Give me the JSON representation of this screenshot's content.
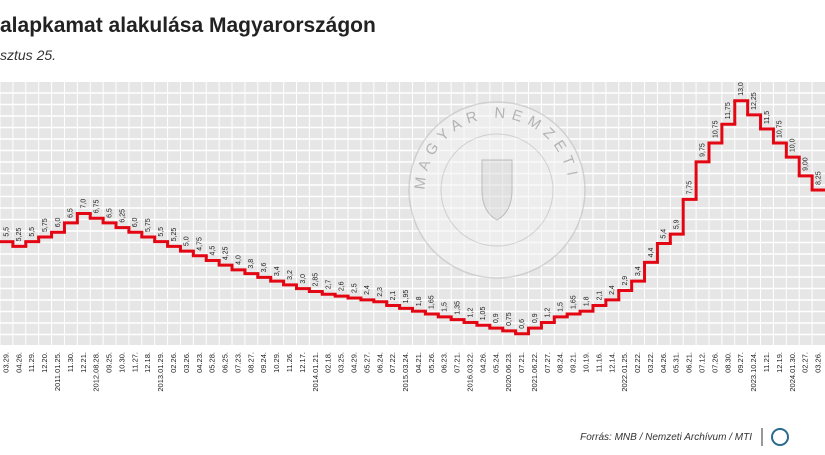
{
  "chart_data": {
    "type": "step",
    "title": "alapkamat alakulása Magyarországon",
    "subtitle": "sztus 25.",
    "watermark": "MAGYAR NEMZETI BANK",
    "source": "Forrás: MNB / Nemzeti Archívum / MTI",
    "color": "#e30613",
    "ylim": [
      0,
      14
    ],
    "categories": [
      "03.29.",
      "04.26.",
      "11.29.",
      "12.20.",
      "2011.01.25.",
      "11.30.",
      "12.21.",
      "2012.08.28.",
      "09.25.",
      "10.30.",
      "11.27.",
      "12.18.",
      "2013.01.29.",
      "02.26.",
      "03.26.",
      "04.23.",
      "05.28.",
      "06.25.",
      "07.23.",
      "08.27.",
      "09.24.",
      "10.29.",
      "11.26.",
      "12.17.",
      "2014.01.21.",
      "02.18.",
      "03.25.",
      "04.29.",
      "05.27.",
      "06.24.",
      "07.22.",
      "2015.03.24.",
      "04.21.",
      "05.26.",
      "06.23.",
      "07.21.",
      "2016.03.22.",
      "04.26.",
      "05.24.",
      "2020.06.23.",
      "07.21.",
      "2021.06.22.",
      "07.27.",
      "08.24.",
      "09.21.",
      "10.19.",
      "11.16.",
      "12.14.",
      "2022.01.25.",
      "02.22.",
      "03.22.",
      "04.26.",
      "05.31.",
      "06.21.",
      "07.12.",
      "07.26.",
      "08.30.",
      "09.27.",
      "2023.10.24.",
      "11.21.",
      "12.19.",
      "2024.01.30.",
      "02.27.",
      "03.26."
    ],
    "values": [
      5.5,
      5.25,
      5.5,
      5.75,
      6.0,
      6.5,
      7.0,
      6.75,
      6.5,
      6.25,
      6.0,
      5.75,
      5.5,
      5.25,
      5.0,
      4.75,
      4.5,
      4.25,
      4.0,
      3.8,
      3.6,
      3.4,
      3.2,
      3.0,
      2.85,
      2.7,
      2.6,
      2.5,
      2.4,
      2.3,
      2.1,
      1.95,
      1.8,
      1.65,
      1.5,
      1.35,
      1.2,
      1.05,
      0.9,
      0.75,
      0.6,
      0.9,
      1.2,
      1.5,
      1.65,
      1.8,
      2.1,
      2.4,
      2.9,
      3.4,
      4.4,
      5.4,
      5.9,
      7.75,
      9.75,
      10.75,
      11.75,
      13.0,
      12.25,
      11.5,
      10.75,
      10.0,
      9.0,
      8.25
    ],
    "value_labels": [
      "5,5",
      "5,25",
      "5,5",
      "5,75",
      "6,0",
      "6,5",
      "7,0",
      "6,75",
      "6,5",
      "6,25",
      "6,0",
      "5,75",
      "5,5",
      "5,25",
      "5,0",
      "4,75",
      "4,5",
      "4,25",
      "4,0",
      "3,8",
      "3,6",
      "3,4",
      "3,2",
      "3,0",
      "2,85",
      "2,7",
      "2,6",
      "2,5",
      "2,4",
      "2,3",
      "2,1",
      "1,95",
      "1,8",
      "1,65",
      "1,5",
      "1,35",
      "1,2",
      "1,05",
      "0,9",
      "0,75",
      "0,6",
      "0,9",
      "1,2",
      "1,5",
      "1,65",
      "1,8",
      "2,1",
      "2,4",
      "2,9",
      "3,4",
      "4,4",
      "5,4",
      "5,9",
      "7,75",
      "9,75",
      "10,75",
      "11,75",
      "13,0",
      "12,25",
      "11,5",
      "10,75",
      "10,0",
      "9,00",
      "8,25"
    ]
  }
}
